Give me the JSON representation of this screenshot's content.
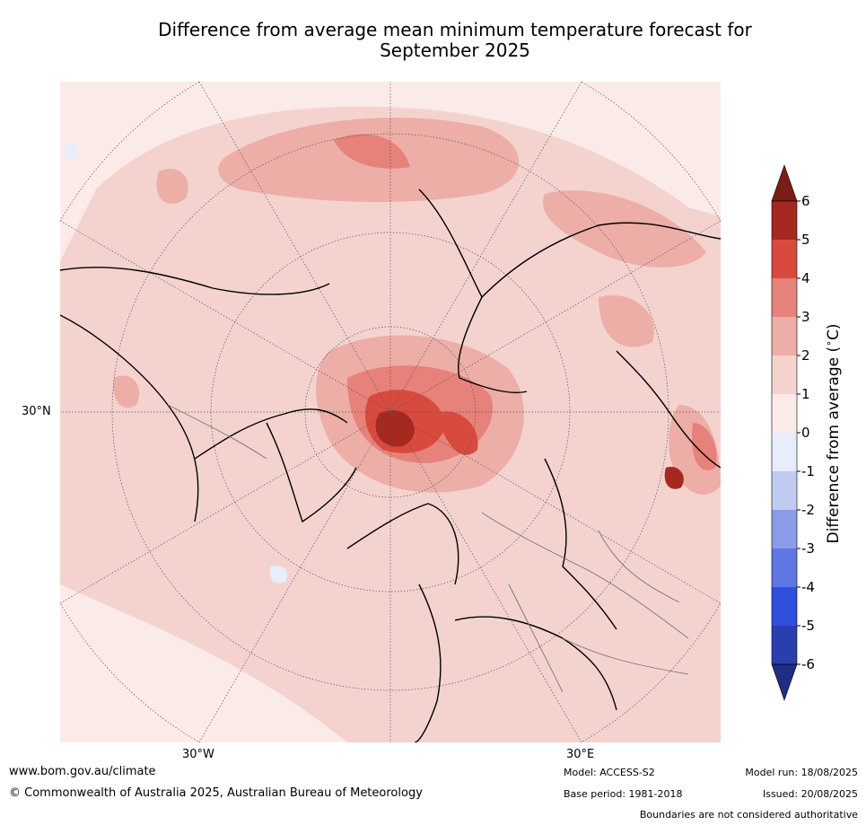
{
  "title_line1": "Difference from average mean minimum temperature forecast for",
  "title_line2": "September 2025",
  "lat_label": "30°N",
  "lon_labels": {
    "west": "30°W",
    "east": "30°E"
  },
  "colorbar": {
    "label": "Difference from average (°C)",
    "label_parts": {
      "main": "Difference from average (",
      "deg": "∘",
      "unit": "C)"
    },
    "ticks": [
      "6",
      "5",
      "4",
      "3",
      "2",
      "1",
      "0",
      "-1",
      "-2",
      "-3",
      "-4",
      "-5",
      "-6"
    ],
    "colors": [
      "#a6281f",
      "#d94a3e",
      "#e6827a",
      "#edaea8",
      "#f4d3cf",
      "#fbebe8",
      "#e8edfb",
      "#c1cbf2",
      "#8a9bea",
      "#5e77e2",
      "#2f4fdd",
      "#2a3fae"
    ],
    "over_color": "#7a1d16",
    "under_color": "#1f2d82"
  },
  "footer": {
    "website": "www.bom.gov.au/climate",
    "copyright": "© Commonwealth of Australia 2025, Australian Bureau of Meteorology",
    "model": "Model: ACCESS-S2",
    "base_period": "Base period: 1981-2018",
    "model_run": "Model run: 18/08/2025",
    "issued": "Issued: 20/08/2025",
    "boundaries": "Boundaries are not considered authoritative"
  }
}
